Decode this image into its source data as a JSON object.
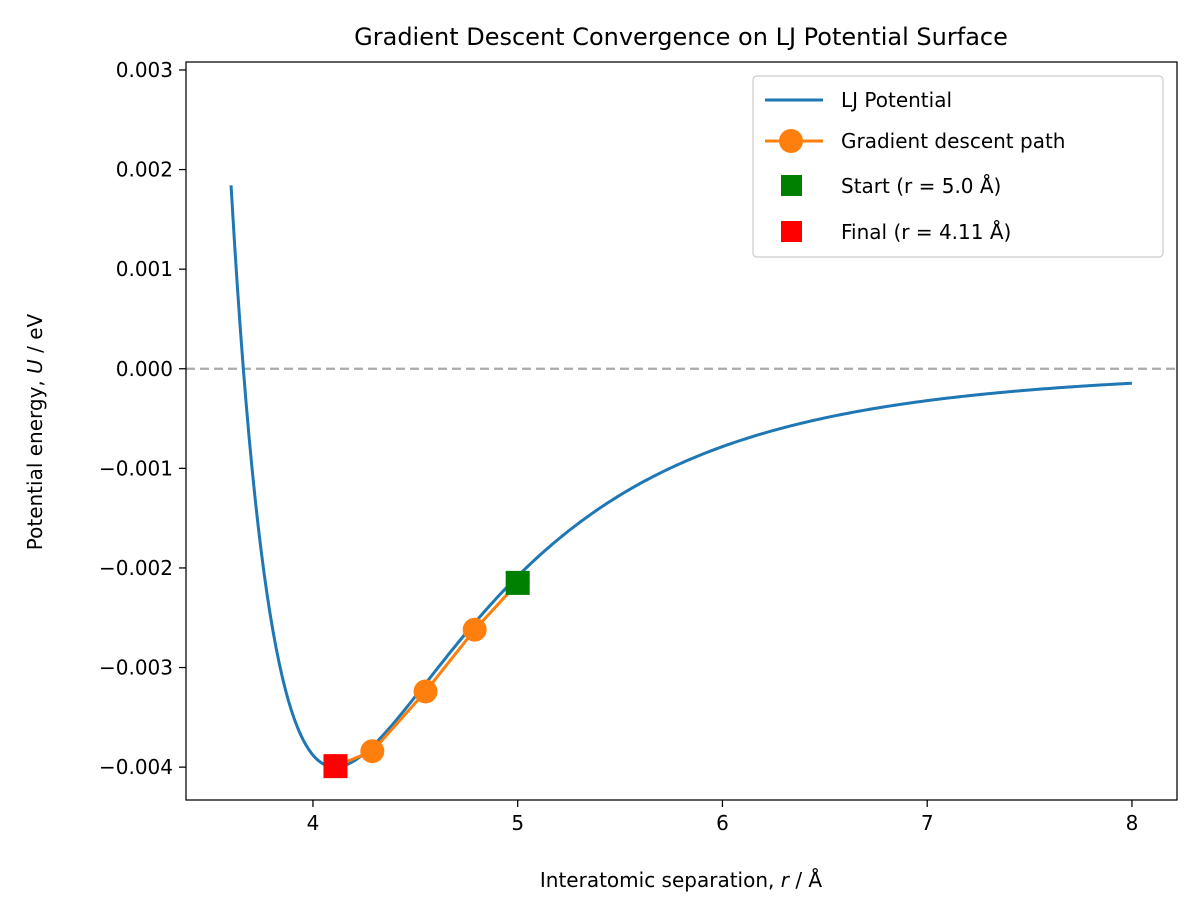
{
  "chart_data": {
    "type": "line",
    "title": "Gradient Descent Convergence on LJ Potential Surface",
    "xlabel_prefix": "Interatomic separation, ",
    "xlabel_var": "r",
    "xlabel_unit": " / Å",
    "ylabel_prefix": "Potential energy, ",
    "ylabel_var": "U",
    "ylabel_unit": " / eV",
    "xlim": [
      3.38,
      8.22
    ],
    "ylim": [
      -0.00433,
      0.00308
    ],
    "xticks": [
      4,
      5,
      6,
      7,
      8
    ],
    "xtick_labels": [
      "4",
      "5",
      "6",
      "7",
      "8"
    ],
    "yticks": [
      -0.004,
      -0.003,
      -0.002,
      -0.001,
      0.0,
      0.001,
      0.002,
      0.003
    ],
    "ytick_labels": [
      "−0.004",
      "−0.003",
      "−0.002",
      "−0.001",
      "0.000",
      "0.001",
      "0.002",
      "0.003"
    ],
    "reference_line": {
      "y": 0.0,
      "color": "#aaaaaa",
      "style": "dashed"
    },
    "lj_potential": {
      "epsilon": 0.004,
      "sigma": 3.66,
      "r_min": 3.6,
      "r_max": 8.0,
      "points": 300
    },
    "series": [
      {
        "name": "LJ Potential",
        "color": "#1f77b4",
        "kind": "line"
      },
      {
        "name": "Gradient descent path",
        "color": "#ff7f0e",
        "kind": "line+markers",
        "x": [
          5.0,
          4.79,
          4.55,
          4.29,
          4.11
        ],
        "y": [
          -0.00215,
          -0.00262,
          -0.00324,
          -0.00384,
          -0.00399
        ]
      },
      {
        "name": "Start (r = 5.0 Å)",
        "color": "#008000",
        "kind": "square",
        "x": [
          5.0
        ],
        "y": [
          -0.00215
        ]
      },
      {
        "name": "Final (r = 4.11 Å)",
        "color": "#ff0000",
        "kind": "square",
        "x": [
          4.11
        ],
        "y": [
          -0.00399
        ]
      }
    ],
    "legend": {
      "position": "top-right",
      "entries": [
        "LJ Potential",
        "Gradient descent path",
        "Start (r = 5.0 Å)",
        "Final (r = 4.11 Å)"
      ]
    }
  }
}
